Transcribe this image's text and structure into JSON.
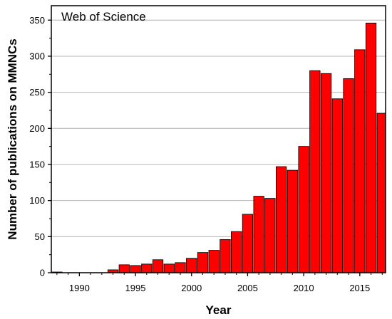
{
  "chart_data": {
    "type": "bar",
    "annotation": "Web of Science",
    "xlabel": "Year",
    "ylabel": "Number of publications on MMNCs",
    "x": [
      1988,
      1989,
      1990,
      1991,
      1992,
      1993,
      1994,
      1995,
      1996,
      1997,
      1998,
      1999,
      2000,
      2001,
      2002,
      2003,
      2004,
      2005,
      2006,
      2007,
      2008,
      2009,
      2010,
      2011,
      2012,
      2013,
      2014,
      2015,
      2016,
      2017
    ],
    "values": [
      1,
      0,
      0,
      0,
      0,
      4,
      11,
      10,
      12,
      18,
      12,
      14,
      20,
      28,
      31,
      46,
      57,
      81,
      106,
      103,
      147,
      142,
      175,
      280,
      276,
      241,
      269,
      309,
      346,
      221
    ],
    "xticks": [
      1990,
      1995,
      2000,
      2005,
      2010,
      2015
    ],
    "yticks": [
      0,
      50,
      100,
      150,
      200,
      250,
      300,
      350
    ],
    "xlim": [
      1987.5,
      2017.3
    ],
    "ylim": [
      0,
      370
    ],
    "bar_color": "#ff0000",
    "grid": "horizontal"
  }
}
